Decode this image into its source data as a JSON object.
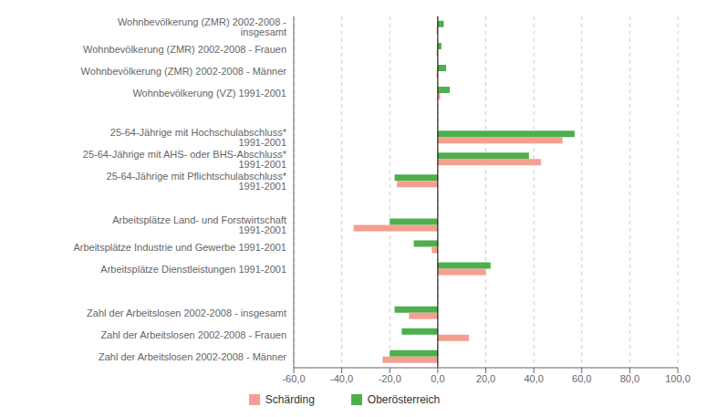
{
  "chart_data": {
    "type": "bar",
    "orientation": "horizontal",
    "categories": [
      "Wohnbevölkerung (ZMR) 2002-2008 - insgesamt",
      "Wohnbevölkerung (ZMR) 2002-2008 - Frauen",
      "Wohnbevölkerung (ZMR) 2002-2008 - Männer",
      "Wohnbevölkerung (VZ) 1991-2001",
      null,
      "25-64-Jährige mit Hochschulabschluss* 1991-2001",
      "25-64-Jährige mit AHS- oder BHS-Abschluss* 1991-2001",
      "25-64-Jährige mit Pflichtschulabschluss* 1991-2001",
      null,
      "Arbeitsplätze Land- und Forstwirtschaft 1991-2001",
      "Arbeitsplätze Industrie und Gewerbe 1991-2001",
      "Arbeitsplätze Dienstleistungen 1991-2001",
      null,
      "Zahl der Arbeitslosen 2002-2008 - insgesamt",
      "Zahl der Arbeitslosen 2002-2008 - Frauen",
      "Zahl der Arbeitslosen 2002-2008 - Männer"
    ],
    "series": [
      {
        "name": "Schärding",
        "color": "#F4A090",
        "values": [
          -0.5,
          -0.5,
          -0.5,
          1.0,
          null,
          52.0,
          43.0,
          -17.0,
          null,
          -35.0,
          -2.5,
          20.0,
          null,
          -12.0,
          13.0,
          -23.0
        ]
      },
      {
        "name": "Oberösterreich",
        "color": "#4DAF4D",
        "values": [
          2.5,
          1.5,
          3.5,
          5.0,
          null,
          57.0,
          38.0,
          -18.0,
          null,
          -20.0,
          -10.0,
          22.0,
          null,
          -18.0,
          -15.0,
          -20.0
        ]
      }
    ],
    "xlim": [
      -60,
      100
    ],
    "xticks": [
      {
        "value": -60,
        "label": "-60,0"
      },
      {
        "value": -40,
        "label": "-40,0"
      },
      {
        "value": -20,
        "label": "-20,0"
      },
      {
        "value": 0,
        "label": "0,0"
      },
      {
        "value": 20,
        "label": "20,0"
      },
      {
        "value": 40,
        "label": "40,0"
      },
      {
        "value": 60,
        "label": "60,0"
      },
      {
        "value": 80,
        "label": "80,0"
      },
      {
        "value": 100,
        "label": "100,0"
      }
    ],
    "grid": true,
    "legend": "bottom"
  }
}
